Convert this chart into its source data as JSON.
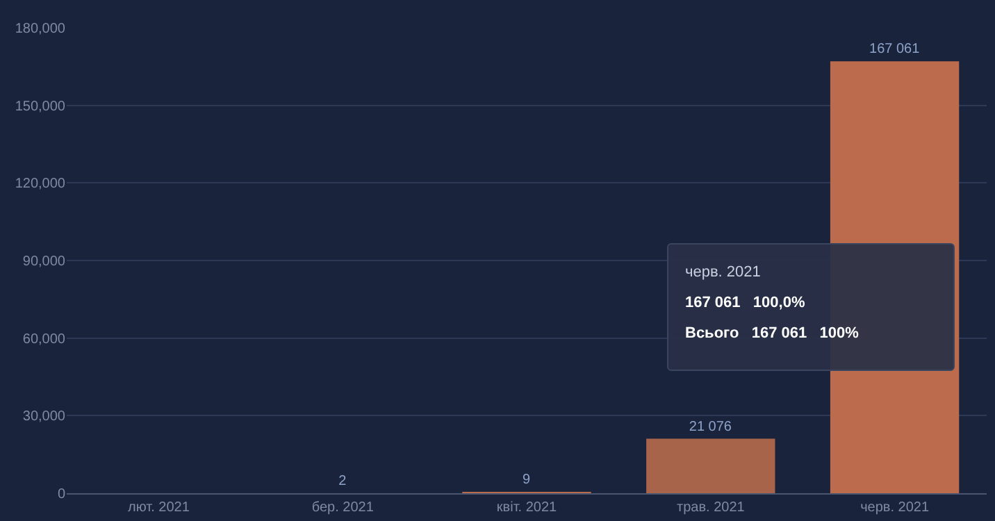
{
  "chart_data": {
    "type": "bar",
    "categories": [
      "лют. 2021",
      "бер. 2021",
      "квіт. 2021",
      "трав. 2021",
      "черв. 2021"
    ],
    "values": [
      0,
      2,
      9,
      21076,
      167061
    ],
    "colors": [
      "#b86a4c",
      "#b86a4c",
      "#b86a4c",
      "#a8644a",
      "#bd6b4d"
    ],
    "value_labels": [
      null,
      "2",
      "9",
      "21 076",
      "167 061"
    ],
    "ylim": [
      0,
      180000
    ],
    "yticks": [
      {
        "value": 0,
        "label": "0"
      },
      {
        "value": 30000,
        "label": "30,000"
      },
      {
        "value": 60000,
        "label": "60,000"
      },
      {
        "value": 90000,
        "label": "90,000"
      },
      {
        "value": 120000,
        "label": "120,000"
      },
      {
        "value": 150000,
        "label": "150,000"
      },
      {
        "value": 180000,
        "label": "180,000"
      }
    ],
    "grid": "y",
    "annotations": [
      "черв. 2021",
      "167 061   100,0%",
      "Всього   167 061   100%"
    ]
  }
}
